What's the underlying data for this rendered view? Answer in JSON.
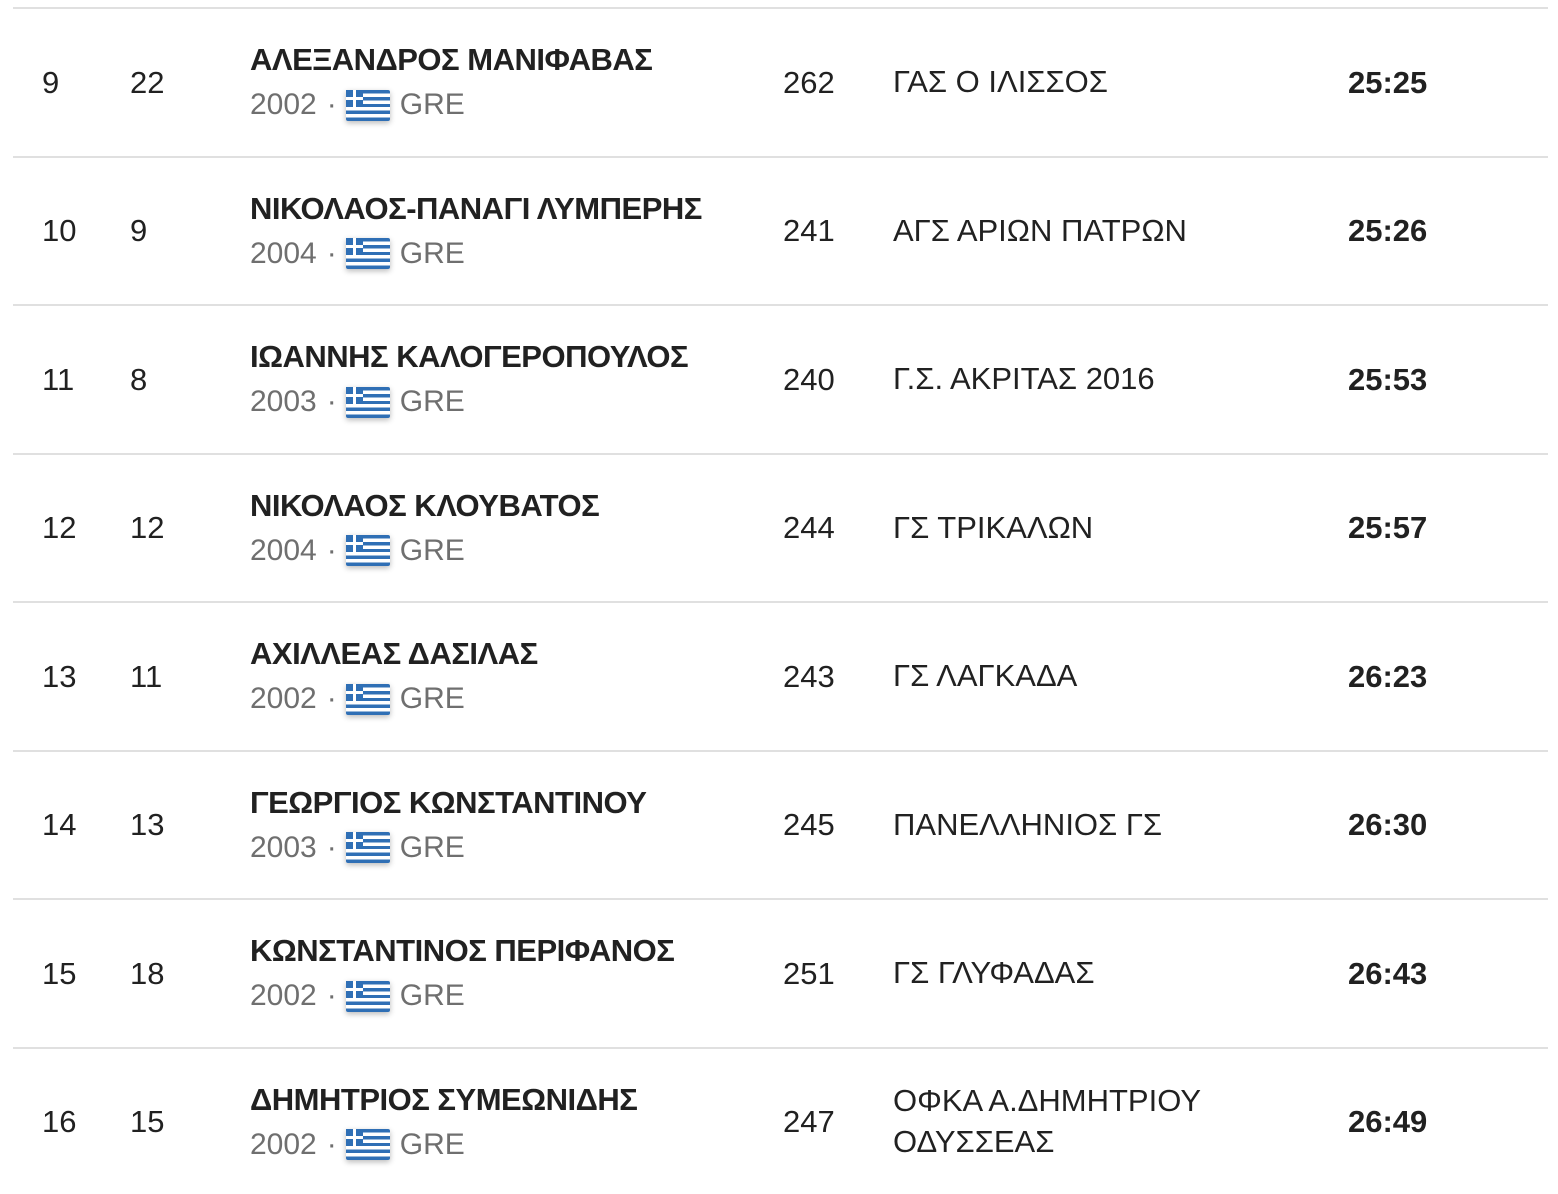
{
  "colors": {
    "text_primary": "#212121",
    "text_secondary": "#6f6f6f",
    "separator": "#e0e0e0",
    "flag_blue": "#2f6fb5",
    "background": "#ffffff"
  },
  "meta": {
    "dot": "·"
  },
  "table": {
    "rows": [
      {
        "rank": "9",
        "bib": "22",
        "name": "ΑΛΕΞΑΝΔΡΟΣ ΜΑΝΙΦΑΒΑΣ",
        "year": "2002",
        "country": "GRE",
        "number": "262",
        "club": "ΓΑΣ Ο ΙΛΙΣΣΟΣ",
        "time": "25:25"
      },
      {
        "rank": "10",
        "bib": "9",
        "name": "ΝΙΚΟΛΑΟΣ-ΠΑΝΑΓΙ ΛΥΜΠΕΡΗΣ",
        "year": "2004",
        "country": "GRE",
        "number": "241",
        "club": "ΑΓΣ ΑΡΙΩΝ ΠΑΤΡΩΝ",
        "time": "25:26"
      },
      {
        "rank": "11",
        "bib": "8",
        "name": "ΙΩΑΝΝΗΣ ΚΑΛΟΓΕΡΟΠΟΥΛΟΣ",
        "year": "2003",
        "country": "GRE",
        "number": "240",
        "club": "Γ.Σ. ΑΚΡΙΤΑΣ 2016",
        "time": "25:53"
      },
      {
        "rank": "12",
        "bib": "12",
        "name": "ΝΙΚΟΛΑΟΣ ΚΛΟΥΒΑΤΟΣ",
        "year": "2004",
        "country": "GRE",
        "number": "244",
        "club": "ΓΣ ΤΡΙΚΑΛΩΝ",
        "time": "25:57"
      },
      {
        "rank": "13",
        "bib": "11",
        "name": "ΑΧΙΛΛΕΑΣ ΔΑΣΙΛΑΣ",
        "year": "2002",
        "country": "GRE",
        "number": "243",
        "club": "ΓΣ ΛΑΓΚΑΔΑ",
        "time": "26:23"
      },
      {
        "rank": "14",
        "bib": "13",
        "name": "ΓΕΩΡΓΙΟΣ ΚΩΝΣΤΑΝΤΙΝΟΥ",
        "year": "2003",
        "country": "GRE",
        "number": "245",
        "club": "ΠΑΝΕΛΛΗΝΙΟΣ ΓΣ",
        "time": "26:30"
      },
      {
        "rank": "15",
        "bib": "18",
        "name": "ΚΩΝΣΤΑΝΤΙΝΟΣ ΠΕΡΙΦΑΝΟΣ",
        "year": "2002",
        "country": "GRE",
        "number": "251",
        "club": "ΓΣ ΓΛΥΦΑΔΑΣ",
        "time": "26:43"
      },
      {
        "rank": "16",
        "bib": "15",
        "name": "ΔΗΜΗΤΡΙΟΣ ΣΥΜΕΩΝΙΔΗΣ",
        "year": "2002",
        "country": "GRE",
        "number": "247",
        "club": "ΟΦΚΑ Α.ΔΗΜΗΤΡΙΟΥ ΟΔΥΣΣΕΑΣ",
        "time": "26:49"
      }
    ]
  }
}
